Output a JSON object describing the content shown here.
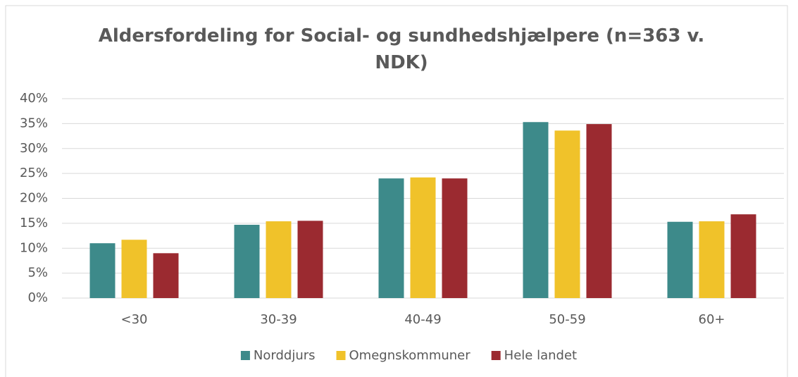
{
  "chart_data": {
    "type": "bar",
    "title": "Aldersfordeling for Social- og sundhedshjælpere (n=363 v. NDK)",
    "categories": [
      "<30",
      "30-39",
      "40-49",
      "50-59",
      "60+"
    ],
    "series": [
      {
        "name": "Norddjurs",
        "color": "#3d8a8a",
        "values": [
          11.0,
          14.7,
          24.0,
          35.3,
          15.3
        ]
      },
      {
        "name": "Omegnskommuner",
        "color": "#f0c22a",
        "values": [
          11.7,
          15.4,
          24.2,
          33.6,
          15.4
        ]
      },
      {
        "name": "Hele landet",
        "color": "#9b2a30",
        "values": [
          9.0,
          15.5,
          24.0,
          34.9,
          16.8
        ]
      }
    ],
    "ylim": [
      0,
      40
    ],
    "yticks": [
      {
        "value": 0,
        "label": "0%"
      },
      {
        "value": 5,
        "label": "5%"
      },
      {
        "value": 10,
        "label": "10%"
      },
      {
        "value": 15,
        "label": "15%"
      },
      {
        "value": 20,
        "label": "20%"
      },
      {
        "value": 25,
        "label": "25%"
      },
      {
        "value": 30,
        "label": "30%"
      },
      {
        "value": 35,
        "label": "35%"
      },
      {
        "value": 40,
        "label": "40%"
      }
    ],
    "grid": true,
    "legend": "bottom"
  }
}
